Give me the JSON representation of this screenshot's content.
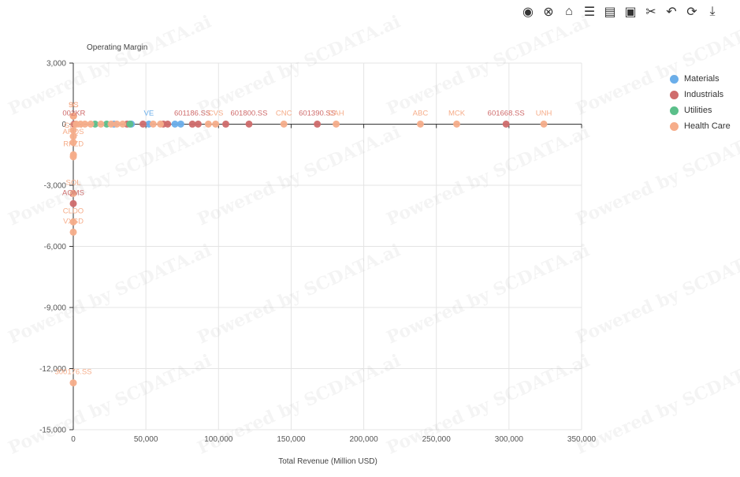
{
  "watermark": "Powered by SCDATA.ai",
  "toolbar": [
    {
      "name": "target-icon",
      "glyph": "◉"
    },
    {
      "name": "cancel-icon",
      "glyph": "⊗"
    },
    {
      "name": "tag-icon",
      "glyph": "⌂"
    },
    {
      "name": "data-view-icon",
      "glyph": "☰"
    },
    {
      "name": "comment-icon",
      "glyph": "▤"
    },
    {
      "name": "flag-comment-icon",
      "glyph": "▣"
    },
    {
      "name": "scissors-icon",
      "glyph": "✂"
    },
    {
      "name": "undo-icon",
      "glyph": "↶"
    },
    {
      "name": "refresh-icon",
      "glyph": "⟳"
    },
    {
      "name": "download-icon",
      "glyph": "⤓"
    }
  ],
  "chart_data": {
    "type": "scatter",
    "xlabel": "Total Revenue (Million USD)",
    "ylabel": "Operating Margin",
    "xlim": [
      0,
      350000
    ],
    "ylim": [
      -15000,
      3000
    ],
    "xticks": [
      0,
      50000,
      100000,
      150000,
      200000,
      250000,
      300000,
      350000
    ],
    "xtick_labels": [
      "0",
      "50,000",
      "100,000",
      "150,000",
      "200,000",
      "250,000",
      "300,000",
      "350,000"
    ],
    "yticks": [
      3000,
      0,
      -3000,
      -6000,
      -9000,
      -12000,
      -15000
    ],
    "ytick_labels": [
      "3,000",
      "0",
      "-3,000",
      "-6,000",
      "-9,000",
      "-12,000",
      "-15,000"
    ],
    "grid": true,
    "legend_position": "top-right",
    "series": [
      {
        "name": "Materials",
        "color": "#6aaeea",
        "points": [
          {
            "x": 52000,
            "y": 5,
            "label": "VE"
          },
          {
            "x": 70000,
            "y": 5,
            "label": ""
          },
          {
            "x": 74000,
            "y": 6,
            "label": ""
          },
          {
            "x": 28000,
            "y": 4,
            "label": ""
          },
          {
            "x": 40000,
            "y": 5,
            "label": ""
          }
        ]
      },
      {
        "name": "Industrials",
        "color": "#cf6c6c",
        "points": [
          {
            "x": 298000,
            "y": 5,
            "label": "601668.SS"
          },
          {
            "x": 168000,
            "y": 4,
            "label": "601390.SS"
          },
          {
            "x": 121000,
            "y": 5,
            "label": "601800.SS"
          },
          {
            "x": 105000,
            "y": 4,
            "label": ""
          },
          {
            "x": 86000,
            "y": 5,
            "label": ""
          },
          {
            "x": 82000,
            "y": 4,
            "label": "601186.SS"
          },
          {
            "x": 65000,
            "y": 5,
            "label": ""
          },
          {
            "x": 62000,
            "y": 6,
            "label": ""
          },
          {
            "x": 48000,
            "y": 5,
            "label": ""
          },
          {
            "x": 37000,
            "y": 4,
            "label": ""
          },
          {
            "x": 0,
            "y": -3900,
            "label": "AQMS"
          },
          {
            "x": 500,
            "y": 0,
            "label": "002KR"
          }
        ]
      },
      {
        "name": "Utilities",
        "color": "#5bbf8a",
        "points": [
          {
            "x": 23000,
            "y": 5,
            "label": ""
          },
          {
            "x": 39000,
            "y": 5,
            "label": ""
          },
          {
            "x": 15000,
            "y": 5,
            "label": ""
          }
        ]
      },
      {
        "name": "Health Care",
        "color": "#f6ad8a",
        "points": [
          {
            "x": 324000,
            "y": 5,
            "label": "UNH"
          },
          {
            "x": 264000,
            "y": 5,
            "label": "MCK"
          },
          {
            "x": 239000,
            "y": 5,
            "label": "ABC"
          },
          {
            "x": 181000,
            "y": 5,
            "label": "CAH"
          },
          {
            "x": 145000,
            "y": 5,
            "label": "CNC"
          },
          {
            "x": 98000,
            "y": 5,
            "label": "CVS"
          },
          {
            "x": 93000,
            "y": 5,
            "label": ""
          },
          {
            "x": 60000,
            "y": 5,
            "label": ""
          },
          {
            "x": 55000,
            "y": 5,
            "label": ""
          },
          {
            "x": 34000,
            "y": 5,
            "label": ""
          },
          {
            "x": 30000,
            "y": 5,
            "label": ""
          },
          {
            "x": 26000,
            "y": 5,
            "label": ""
          },
          {
            "x": 19000,
            "y": 5,
            "label": ""
          },
          {
            "x": 12000,
            "y": 5,
            "label": ""
          },
          {
            "x": 8000,
            "y": 5,
            "label": ""
          },
          {
            "x": 5000,
            "y": 5,
            "label": ""
          },
          {
            "x": 2000,
            "y": 5,
            "label": ""
          },
          {
            "x": 0,
            "y": 400,
            "label": ""
          },
          {
            "x": 100,
            "y": 400,
            "label": "9C"
          },
          {
            "x": 200,
            "y": 400,
            "label": "SS"
          },
          {
            "x": 0,
            "y": -300,
            "label": ""
          },
          {
            "x": 0,
            "y": -600,
            "label": "GRIN"
          },
          {
            "x": 0,
            "y": -900,
            "label": "ARQS"
          },
          {
            "x": 100,
            "y": -1500,
            "label": "RKZD"
          },
          {
            "x": 0,
            "y": -1600,
            "label": ""
          },
          {
            "x": 0,
            "y": -3400,
            "label": "SOL"
          },
          {
            "x": 0,
            "y": -4800,
            "label": "CLDO"
          },
          {
            "x": 0,
            "y": -5300,
            "label": "VXSD"
          },
          {
            "x": 0,
            "y": -12700,
            "label": "300176.SS"
          }
        ]
      }
    ]
  }
}
